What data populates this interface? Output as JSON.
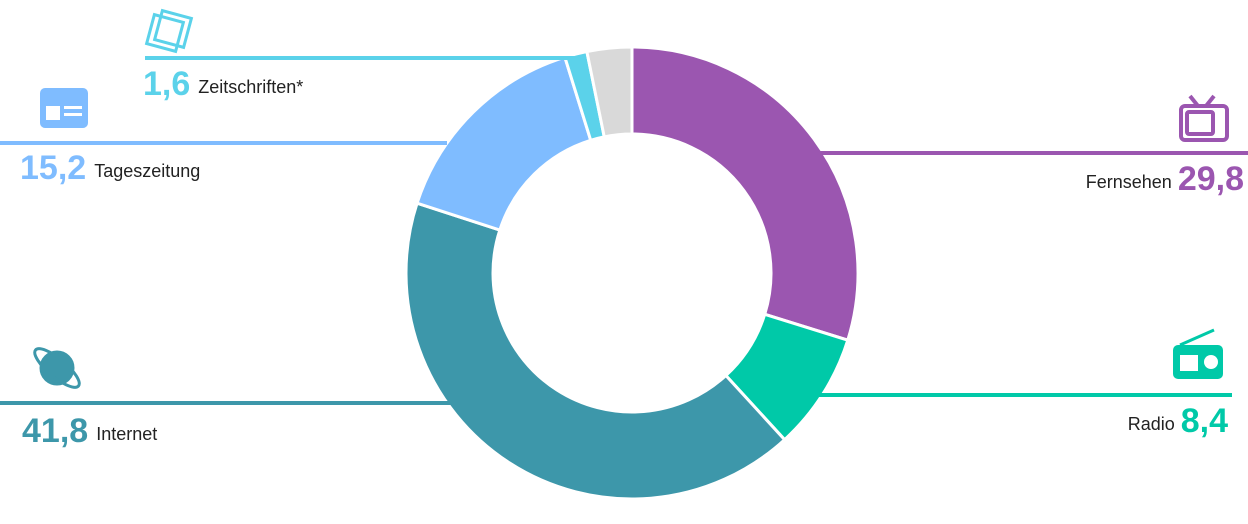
{
  "chart_data": {
    "type": "donut",
    "categories": [
      "Fernsehen",
      "Radio",
      "Internet",
      "Tageszeitung",
      "Zeitschriften*",
      null
    ],
    "values": [
      29.8,
      8.4,
      41.8,
      15.2,
      1.6,
      3.2
    ],
    "value_labels": [
      "29,8",
      "8,4",
      "41,8",
      "15,2",
      "1,6",
      null
    ],
    "colors": [
      "#9b56b0",
      "#00c9a8",
      "#3d97aa",
      "#7fbcff",
      "#5bd2ea",
      "#d9d9d9"
    ]
  }
}
